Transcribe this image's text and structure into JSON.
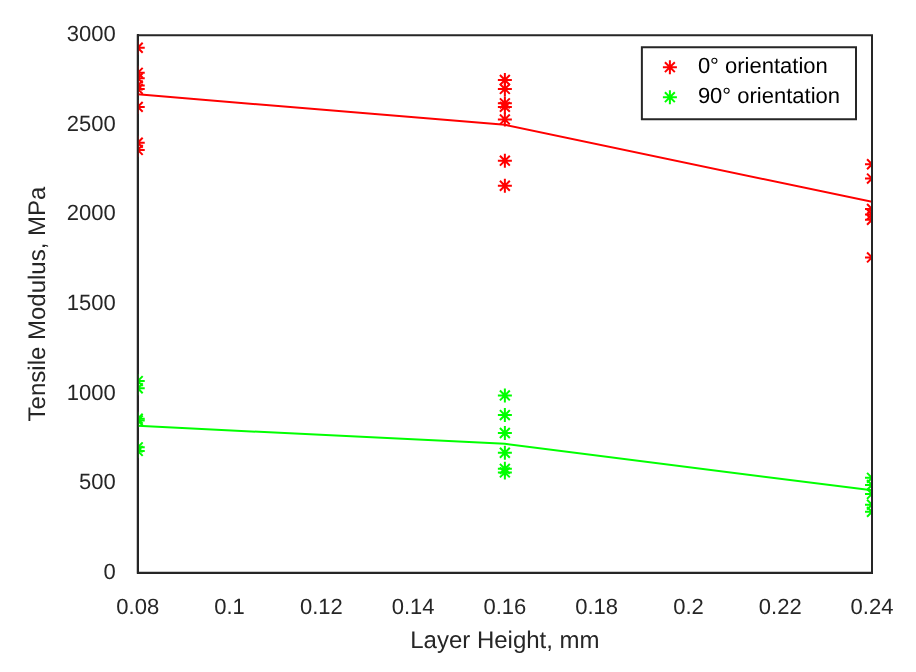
{
  "chart_data": {
    "type": "scatter",
    "xlabel": "Layer Height, mm",
    "ylabel": "Tensile Modulus, MPa",
    "xlim": [
      0.08,
      0.24
    ],
    "xticks": [
      0.08,
      0.1,
      0.12,
      0.14,
      0.16,
      0.18,
      0.2,
      0.22,
      0.24
    ],
    "ylim": [
      0,
      3000
    ],
    "yticks": [
      0,
      500,
      1000,
      1500,
      2000,
      2500,
      3000
    ],
    "grid": false,
    "legend": "top right",
    "marker": "cross",
    "series": [
      {
        "name": "0° orientation",
        "color": "#ff0000",
        "x": [
          0.08,
          0.08,
          0.08,
          0.08,
          0.08,
          0.08,
          0.08,
          0.08,
          0.16,
          0.16,
          0.16,
          0.16,
          0.16,
          0.16,
          0.16,
          0.24,
          0.24,
          0.24,
          0.24,
          0.24,
          0.24
        ],
        "values": [
          2930,
          2790,
          2760,
          2720,
          2700,
          2600,
          2400,
          2360,
          2750,
          2700,
          2620,
          2600,
          2530,
          2300,
          2160,
          2280,
          2200,
          2030,
          2000,
          1970,
          1760
        ]
      },
      {
        "name": "90° orientation",
        "color": "#00ff00",
        "x": [
          0.08,
          0.08,
          0.08,
          0.08,
          0.08,
          0.08,
          0.16,
          0.16,
          0.16,
          0.16,
          0.16,
          0.16,
          0.24,
          0.24,
          0.24,
          0.24,
          0.24
        ],
        "values": [
          1070,
          1030,
          860,
          850,
          700,
          680,
          990,
          880,
          780,
          670,
          580,
          560,
          530,
          490,
          440,
          380,
          340
        ]
      },
      {
        "type": "line",
        "color": "#ff0000",
        "x": [
          0.08,
          0.16,
          0.24
        ],
        "values": [
          2670,
          2500,
          2070
        ],
        "marker": "none",
        "line_style": "solid"
      },
      {
        "type": "line",
        "color": "#00ff00",
        "x": [
          0.08,
          0.16,
          0.24
        ],
        "values": [
          820,
          720,
          460
        ],
        "marker": "none",
        "line_style": "solid"
      }
    ]
  }
}
